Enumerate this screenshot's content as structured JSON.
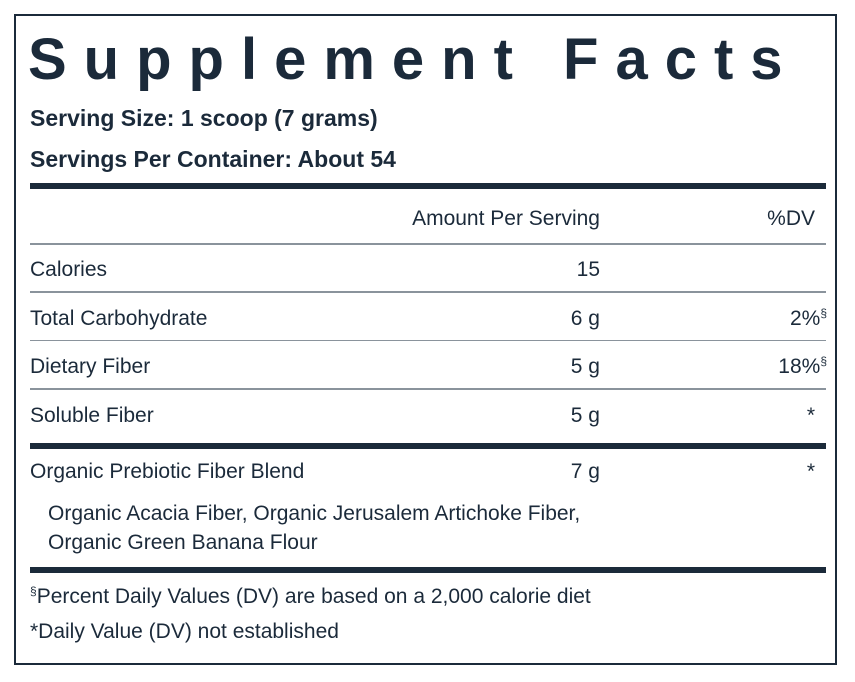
{
  "title": "Supplement Facts",
  "serving": [
    "Serving Size: 1 scoop (7 grams)",
    "Servings Per Container: About 54"
  ],
  "table": {
    "header": {
      "amount": "Amount Per Serving",
      "dv": "%DV"
    },
    "rows": [
      {
        "label": "Calories",
        "amount": "15"
      },
      {
        "label": "Total Carbohydrate",
        "amount": "6 g",
        "dv": "2%",
        "note": "§"
      },
      {
        "label": "Dietary Fiber",
        "amount": "5 g",
        "dv": "18%",
        "note": "§"
      },
      {
        "label": "Soluble Fiber",
        "amount": "5 g",
        "dv": "*"
      }
    ],
    "blend": {
      "label": "Organic Prebiotic Fiber Blend",
      "amount": "7 g",
      "dv": "*",
      "ingredients": [
        "Organic Acacia Fiber, Organic Jerusalem Artichoke Fiber,",
        "Organic Green Banana Flour"
      ]
    }
  },
  "footnotes": [
    {
      "note": "§",
      "text": "Percent Daily Values (DV) are based on a 2,000 calorie diet"
    },
    {
      "text": "*Daily Value (DV) not established"
    }
  ]
}
